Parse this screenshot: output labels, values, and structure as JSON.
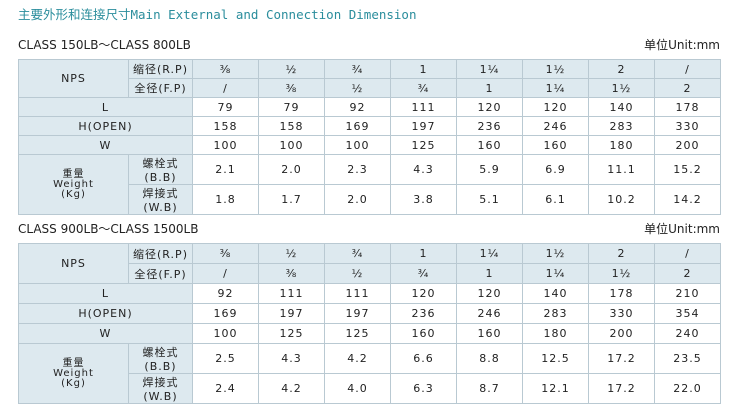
{
  "title": "主要外形和连接尺寸Main External and Connection Dimension",
  "tables": [
    {
      "class": "CLASS 150LB～CLASS 800LB",
      "unit": "单位Unit:mm",
      "nps": "NPS",
      "rp": "缩径(R.P)",
      "fp": "全径(F.P)",
      "rp_sizes": [
        "⅜",
        "½",
        "¾",
        "1",
        "1¼",
        "1½",
        "2",
        "/"
      ],
      "fp_sizes": [
        "/",
        "⅜",
        "½",
        "¾",
        "1",
        "1¼",
        "1½",
        "2"
      ],
      "rows": [
        {
          "label": "L",
          "values": [
            "79",
            "79",
            "92",
            "111",
            "120",
            "120",
            "140",
            "178"
          ]
        },
        {
          "label": "H(OPEN)",
          "values": [
            "158",
            "158",
            "169",
            "197",
            "236",
            "246",
            "283",
            "330"
          ]
        },
        {
          "label": "W",
          "values": [
            "100",
            "100",
            "100",
            "125",
            "160",
            "160",
            "180",
            "200"
          ]
        }
      ],
      "weight": {
        "label": [
          "重量",
          "Weight",
          "(Kg)"
        ],
        "rows": [
          {
            "label": "螺栓式(B.B)",
            "values": [
              "2.1",
              "2.0",
              "2.3",
              "4.3",
              "5.9",
              "6.9",
              "11.1",
              "15.2"
            ]
          },
          {
            "label": "焊接式(W.B)",
            "values": [
              "1.8",
              "1.7",
              "2.0",
              "3.8",
              "5.1",
              "6.1",
              "10.2",
              "14.2"
            ]
          }
        ]
      }
    },
    {
      "class": "CLASS 900LB～CLASS 1500LB",
      "unit": "单位Unit:mm",
      "nps": "NPS",
      "rp": "缩径(R.P)",
      "fp": "全径(F.P)",
      "rp_sizes": [
        "⅜",
        "½",
        "¾",
        "1",
        "1¼",
        "1½",
        "2",
        "/"
      ],
      "fp_sizes": [
        "/",
        "⅜",
        "½",
        "¾",
        "1",
        "1¼",
        "1½",
        "2"
      ],
      "rows": [
        {
          "label": "L",
          "values": [
            "92",
            "111",
            "111",
            "120",
            "120",
            "140",
            "178",
            "210"
          ]
        },
        {
          "label": "H(OPEN)",
          "values": [
            "169",
            "197",
            "197",
            "236",
            "246",
            "283",
            "330",
            "354"
          ]
        },
        {
          "label": "W",
          "values": [
            "100",
            "125",
            "125",
            "160",
            "160",
            "180",
            "200",
            "240"
          ]
        }
      ],
      "weight": {
        "label": [
          "重量",
          "Weight",
          "(Kg)"
        ],
        "rows": [
          {
            "label": "螺栓式(B.B)",
            "values": [
              "2.5",
              "4.3",
              "4.2",
              "6.6",
              "8.8",
              "12.5",
              "17.2",
              "23.5"
            ]
          },
          {
            "label": "焊接式(W.B)",
            "values": [
              "2.4",
              "4.2",
              "4.0",
              "6.3",
              "8.7",
              "12.1",
              "17.2",
              "22.0"
            ]
          }
        ]
      }
    }
  ]
}
